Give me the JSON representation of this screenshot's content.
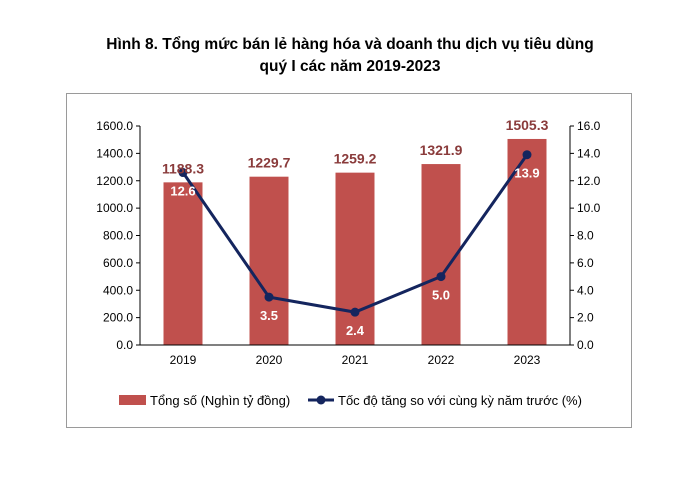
{
  "title_line1": "Hình 8. Tổng mức bán lẻ hàng hóa và doanh thu dịch vụ tiêu dùng",
  "title_line2": "quý I các năm 2019-2023",
  "chart_data": {
    "type": "bar",
    "categories": [
      "2019",
      "2020",
      "2021",
      "2022",
      "2023"
    ],
    "series": [
      {
        "name": "Tổng số (Nghìn tỷ đồng)",
        "type": "bar",
        "axis": "left",
        "values": [
          1188.3,
          1229.7,
          1259.2,
          1321.9,
          1505.3
        ],
        "labels": [
          "1188.3",
          "1229.7",
          "1259.2",
          "1321.9",
          "1505.3"
        ],
        "color": "#c0504d"
      },
      {
        "name": "Tốc độ tăng so với cùng kỳ năm trước (%)",
        "type": "line",
        "axis": "right",
        "values": [
          12.6,
          3.5,
          2.4,
          5.0,
          13.9
        ],
        "labels": [
          "12.6",
          "3.5",
          "2.4",
          "5.0",
          "13.9"
        ],
        "color": "#14255e"
      }
    ],
    "y_left": {
      "lim": [
        0,
        1600
      ],
      "ticks": [
        "0.0",
        "200.0",
        "400.0",
        "600.0",
        "800.0",
        "1000.0",
        "1200.0",
        "1400.0",
        "1600.0"
      ]
    },
    "y_right": {
      "lim": [
        0,
        16
      ],
      "ticks": [
        "0.0",
        "2.0",
        "4.0",
        "6.0",
        "8.0",
        "10.0",
        "12.0",
        "14.0",
        "16.0"
      ]
    },
    "grid": false,
    "legend": "bottom"
  }
}
